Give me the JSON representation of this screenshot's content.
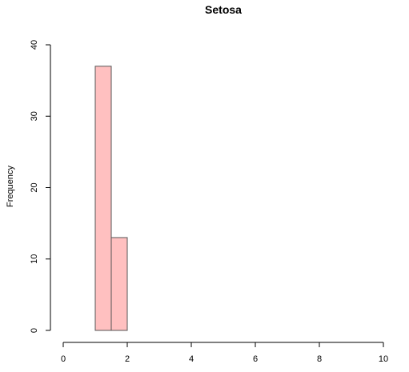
{
  "chart_data": {
    "type": "bar",
    "title": "Setosa",
    "xlabel": "",
    "ylabel": "Frequency",
    "bins": [
      {
        "x0": 1.0,
        "x1": 1.5,
        "value": 37
      },
      {
        "x0": 1.5,
        "x1": 2.0,
        "value": 13
      }
    ],
    "xlim": [
      0,
      10
    ],
    "ylim": [
      0,
      40
    ],
    "xticks": [
      0,
      2,
      4,
      6,
      8,
      10
    ],
    "yticks": [
      0,
      10,
      20,
      30,
      40
    ],
    "bar_color": "#ffc0c0",
    "bar_border_color": "#555555",
    "grid": false,
    "legend": "none"
  }
}
